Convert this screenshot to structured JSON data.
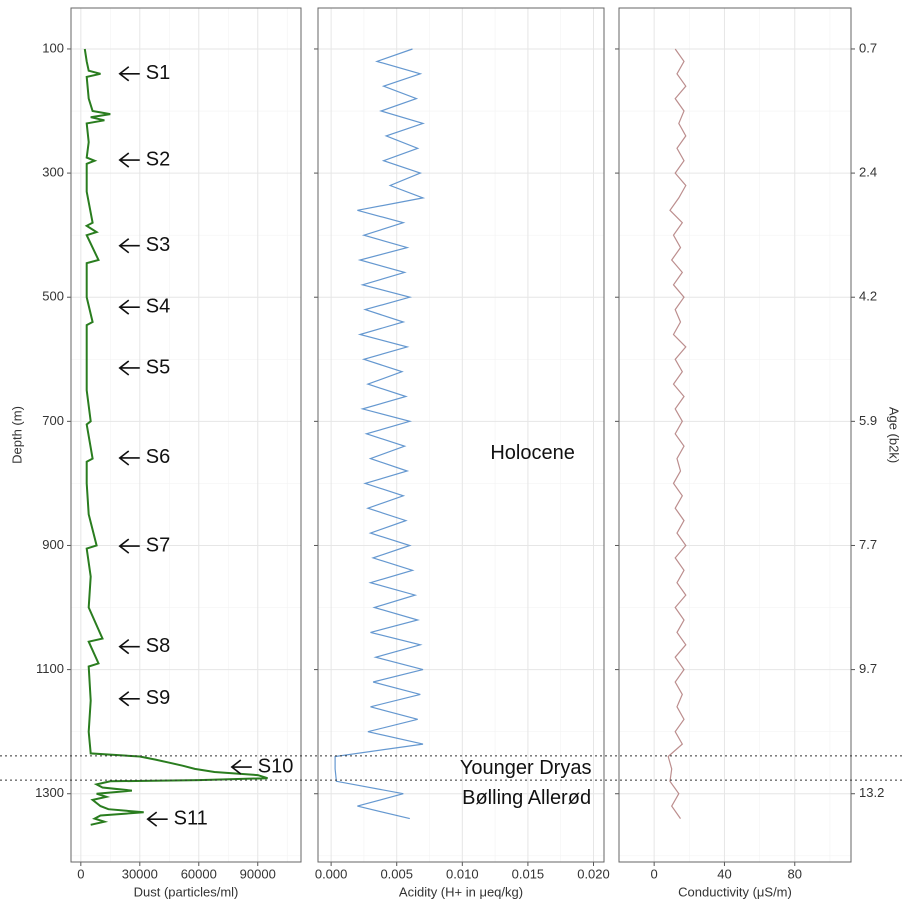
{
  "chart_data": {
    "depth_axis": {
      "label": "Depth (m)",
      "ylim": [
        34,
        1410
      ],
      "yticks": [
        100,
        300,
        500,
        700,
        900,
        1100,
        1300
      ],
      "minor_yticks": [
        200,
        400,
        600,
        800,
        1000,
        1200,
        1400
      ]
    },
    "age_axis": {
      "label": "Age (b2k)",
      "depths": [
        100,
        300,
        500,
        700,
        900,
        1100,
        1300
      ],
      "ticks": [
        0.7,
        2.4,
        4.2,
        5.9,
        7.7,
        9.7,
        13.2
      ]
    },
    "boundaries": [
      1239,
      1278
    ],
    "panels": [
      {
        "type": "line",
        "xlabel": "Dust (particles/ml)",
        "color": "#2a7d1f",
        "xlim": [
          -5000,
          112000
        ],
        "xticks": [
          0,
          30000,
          60000,
          90000
        ],
        "minor_xticks": [
          15000,
          45000,
          75000,
          105000
        ],
        "y": [
          100,
          120,
          135,
          140,
          145,
          180,
          200,
          205,
          210,
          215,
          220,
          250,
          275,
          280,
          285,
          330,
          380,
          385,
          395,
          400,
          440,
          445,
          500,
          540,
          545,
          600,
          650,
          700,
          705,
          760,
          765,
          800,
          850,
          900,
          905,
          950,
          1000,
          1050,
          1055,
          1090,
          1095,
          1150,
          1200,
          1235,
          1240,
          1245,
          1250,
          1255,
          1260,
          1265,
          1270,
          1275,
          1278,
          1280,
          1285,
          1290,
          1295,
          1300,
          1305,
          1310,
          1320,
          1325,
          1330,
          1335,
          1340,
          1345,
          1350
        ],
        "values": [
          2000,
          3000,
          4000,
          10000,
          3000,
          4000,
          6000,
          15000,
          5000,
          12000,
          3000,
          4000,
          3000,
          7000,
          3000,
          3000,
          6000,
          3000,
          8000,
          3000,
          9000,
          3000,
          3000,
          6000,
          3000,
          3000,
          3000,
          5000,
          3000,
          6000,
          3000,
          3000,
          4000,
          8000,
          3000,
          5000,
          4000,
          11000,
          4000,
          9000,
          4000,
          5000,
          4000,
          5000,
          30000,
          38000,
          45000,
          52000,
          58000,
          68000,
          90000,
          95000,
          60000,
          15000,
          8000,
          11000,
          26000,
          8000,
          13000,
          6000,
          10000,
          14000,
          32000,
          10000,
          7000,
          12000,
          5000
        ],
        "annotations": [
          {
            "label": "S1",
            "depth": 140,
            "dust": 19800
          },
          {
            "label": "S2",
            "depth": 279,
            "dust": 19800
          },
          {
            "label": "S3",
            "depth": 417,
            "dust": 19800
          },
          {
            "label": "S4",
            "depth": 516,
            "dust": 19800
          },
          {
            "label": "S5",
            "depth": 614,
            "dust": 19800
          },
          {
            "label": "S6",
            "depth": 759,
            "dust": 19800
          },
          {
            "label": "S7",
            "depth": 901,
            "dust": 19800
          },
          {
            "label": "S8",
            "depth": 1063,
            "dust": 19800
          },
          {
            "label": "S9",
            "depth": 1147,
            "dust": 19800
          },
          {
            "label": "S10",
            "depth": 1257,
            "dust": 76800
          },
          {
            "label": "S11",
            "depth": 1341,
            "dust": 34000
          }
        ]
      },
      {
        "type": "line",
        "xlabel": "Acidity (H+ in μeq/kg)",
        "color": "#4a86c8",
        "xlim": [
          -0.001,
          0.0208
        ],
        "xticks": [
          {
            "value": 0,
            "label": "0.000"
          },
          {
            "value": 0.005,
            "label": "0.005"
          },
          {
            "value": 0.01,
            "label": "0.010"
          },
          {
            "value": 0.015,
            "label": "0.015"
          },
          {
            "value": 0.02,
            "label": "0.020"
          }
        ],
        "minor_xticks": [
          0.0025,
          0.0075,
          0.0125,
          0.0175
        ],
        "y": [
          100,
          120,
          140,
          160,
          180,
          200,
          220,
          240,
          260,
          280,
          300,
          320,
          340,
          360,
          380,
          400,
          420,
          440,
          460,
          480,
          500,
          520,
          540,
          560,
          580,
          600,
          620,
          640,
          660,
          680,
          700,
          720,
          740,
          760,
          780,
          800,
          820,
          840,
          860,
          880,
          900,
          920,
          940,
          960,
          980,
          1000,
          1020,
          1040,
          1060,
          1080,
          1100,
          1120,
          1140,
          1160,
          1180,
          1200,
          1220,
          1240,
          1260,
          1280,
          1300,
          1320,
          1340
        ],
        "values": [
          0.0062,
          0.0035,
          0.0068,
          0.004,
          0.0065,
          0.0038,
          0.007,
          0.0042,
          0.0066,
          0.004,
          0.0068,
          0.0045,
          0.007,
          0.002,
          0.0055,
          0.0025,
          0.0058,
          0.0022,
          0.0056,
          0.0024,
          0.006,
          0.0026,
          0.0055,
          0.0022,
          0.0058,
          0.0025,
          0.0054,
          0.0028,
          0.0057,
          0.0024,
          0.006,
          0.0027,
          0.0056,
          0.003,
          0.0058,
          0.0026,
          0.0055,
          0.0028,
          0.0057,
          0.003,
          0.006,
          0.0032,
          0.0062,
          0.003,
          0.0064,
          0.0033,
          0.0066,
          0.003,
          0.0068,
          0.0034,
          0.007,
          0.0032,
          0.0068,
          0.003,
          0.0066,
          0.0028,
          0.007,
          0.0003,
          0.0003,
          0.0004,
          0.0055,
          0.002,
          0.006
        ],
        "regions": [
          {
            "label": "Holocene",
            "depth": 752,
            "acidity": 0.01536
          },
          {
            "label": "Younger Dryas",
            "depth": 1260,
            "acidity": 0.01483
          },
          {
            "label": "Bølling Allerød",
            "depth": 1308,
            "acidity": 0.0149
          }
        ]
      },
      {
        "type": "line",
        "xlabel": "Conductivity (μS/m)",
        "color": "#b07a7a",
        "xlim": [
          -20,
          112
        ],
        "xticks": [
          0,
          40,
          80
        ],
        "minor_xticks": [
          20,
          60,
          100
        ],
        "y": [
          100,
          120,
          140,
          160,
          180,
          200,
          220,
          240,
          260,
          280,
          300,
          320,
          340,
          360,
          380,
          400,
          420,
          440,
          460,
          480,
          500,
          520,
          540,
          560,
          580,
          600,
          620,
          640,
          660,
          680,
          700,
          720,
          740,
          760,
          780,
          800,
          820,
          840,
          860,
          880,
          900,
          920,
          940,
          960,
          980,
          1000,
          1020,
          1040,
          1060,
          1080,
          1100,
          1120,
          1140,
          1160,
          1180,
          1200,
          1220,
          1240,
          1260,
          1280,
          1300,
          1320,
          1340
        ],
        "values": [
          12,
          17,
          13,
          18,
          12,
          17,
          14,
          18,
          13,
          17,
          12,
          18,
          14,
          9,
          16,
          11,
          15,
          10,
          16,
          11,
          17,
          12,
          15,
          11,
          18,
          12,
          16,
          11,
          17,
          12,
          16,
          12,
          17,
          13,
          15,
          11,
          16,
          12,
          17,
          13,
          18,
          12,
          17,
          13,
          18,
          12,
          17,
          13,
          18,
          12,
          17,
          12,
          16,
          13,
          17,
          12,
          16,
          8,
          10,
          9,
          14,
          10,
          15
        ]
      }
    ]
  }
}
